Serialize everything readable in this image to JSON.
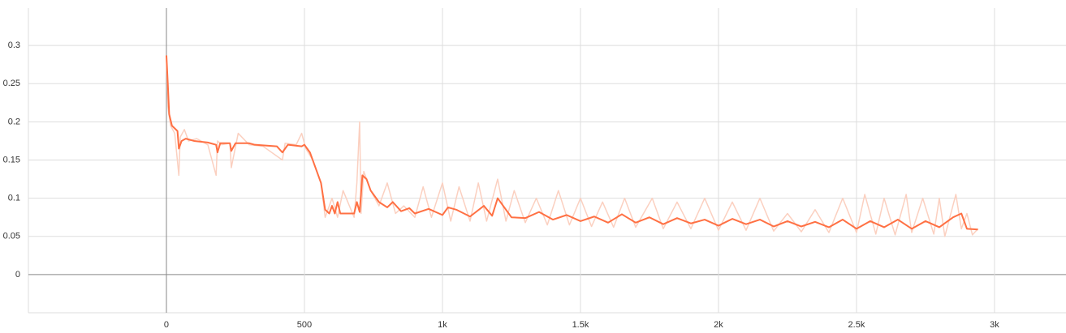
{
  "chart_data": {
    "type": "line",
    "xlim": [
      -500,
      3259
    ],
    "ylim": [
      -0.05,
      0.349
    ],
    "xticks": [
      0,
      500,
      {
        "value": 1000,
        "label": "1k"
      },
      {
        "value": 1500,
        "label": "1.5k"
      },
      {
        "value": 2000,
        "label": "2k"
      },
      {
        "value": 2500,
        "label": "2.5k"
      },
      {
        "value": 3000,
        "label": "3k"
      }
    ],
    "yticks": [
      0,
      0.05,
      0.1,
      0.15,
      0.2,
      0.25,
      0.3
    ],
    "grid": true,
    "series": [
      {
        "color": "#fbd0c0",
        "x": [
          0,
          5,
          15,
          30,
          45,
          50,
          65,
          80,
          110,
          150,
          180,
          185,
          200,
          230,
          235,
          260,
          300,
          350,
          420,
          430,
          470,
          490,
          505,
          530,
          560,
          575,
          600,
          620,
          640,
          680,
          690,
          700,
          705,
          715,
          740,
          770,
          800,
          830,
          860,
          900,
          930,
          960,
          1000,
          1030,
          1060,
          1100,
          1130,
          1160,
          1200,
          1230,
          1260,
          1300,
          1340,
          1380,
          1420,
          1460,
          1500,
          1540,
          1580,
          1620,
          1660,
          1700,
          1760,
          1800,
          1850,
          1900,
          1950,
          2000,
          2050,
          2100,
          2150,
          2200,
          2250,
          2300,
          2350,
          2400,
          2450,
          2500,
          2530,
          2570,
          2600,
          2640,
          2680,
          2700,
          2740,
          2780,
          2800,
          2820,
          2860,
          2880,
          2900,
          2920,
          2940
        ],
        "values": [
          0.287,
          0.22,
          0.195,
          0.185,
          0.13,
          0.18,
          0.19,
          0.175,
          0.178,
          0.17,
          0.13,
          0.175,
          0.17,
          0.172,
          0.14,
          0.185,
          0.17,
          0.168,
          0.15,
          0.172,
          0.17,
          0.185,
          0.165,
          0.15,
          0.12,
          0.075,
          0.1,
          0.075,
          0.11,
          0.075,
          0.12,
          0.2,
          0.08,
          0.135,
          0.11,
          0.09,
          0.12,
          0.08,
          0.09,
          0.075,
          0.115,
          0.075,
          0.12,
          0.07,
          0.115,
          0.07,
          0.12,
          0.07,
          0.125,
          0.07,
          0.11,
          0.068,
          0.1,
          0.065,
          0.11,
          0.065,
          0.1,
          0.063,
          0.095,
          0.062,
          0.1,
          0.062,
          0.1,
          0.06,
          0.095,
          0.06,
          0.1,
          0.058,
          0.095,
          0.058,
          0.1,
          0.057,
          0.08,
          0.056,
          0.085,
          0.055,
          0.1,
          0.055,
          0.105,
          0.053,
          0.1,
          0.052,
          0.105,
          0.055,
          0.1,
          0.053,
          0.1,
          0.05,
          0.105,
          0.06,
          0.08,
          0.052,
          0.06
        ]
      },
      {
        "color": "#ff7043",
        "x": [
          0,
          5,
          10,
          20,
          40,
          45,
          55,
          70,
          100,
          150,
          180,
          185,
          195,
          230,
          235,
          250,
          300,
          320,
          400,
          420,
          440,
          490,
          500,
          520,
          540,
          560,
          575,
          590,
          600,
          610,
          620,
          630,
          680,
          690,
          700,
          710,
          725,
          740,
          770,
          800,
          820,
          850,
          880,
          900,
          950,
          1000,
          1020,
          1050,
          1100,
          1150,
          1180,
          1200,
          1250,
          1300,
          1350,
          1400,
          1450,
          1500,
          1550,
          1600,
          1650,
          1700,
          1750,
          1800,
          1850,
          1900,
          1950,
          2000,
          2050,
          2100,
          2150,
          2200,
          2250,
          2300,
          2350,
          2400,
          2450,
          2500,
          2550,
          2600,
          2650,
          2700,
          2750,
          2800,
          2850,
          2880,
          2900,
          2940
        ],
        "values": [
          0.287,
          0.25,
          0.21,
          0.195,
          0.188,
          0.165,
          0.175,
          0.178,
          0.175,
          0.173,
          0.17,
          0.16,
          0.172,
          0.172,
          0.162,
          0.172,
          0.172,
          0.17,
          0.168,
          0.16,
          0.17,
          0.168,
          0.17,
          0.16,
          0.14,
          0.12,
          0.085,
          0.08,
          0.09,
          0.08,
          0.095,
          0.08,
          0.08,
          0.095,
          0.082,
          0.13,
          0.125,
          0.11,
          0.095,
          0.088,
          0.095,
          0.083,
          0.087,
          0.08,
          0.086,
          0.078,
          0.088,
          0.085,
          0.076,
          0.09,
          0.077,
          0.1,
          0.075,
          0.074,
          0.082,
          0.072,
          0.078,
          0.07,
          0.076,
          0.068,
          0.079,
          0.068,
          0.075,
          0.066,
          0.074,
          0.067,
          0.072,
          0.064,
          0.073,
          0.066,
          0.072,
          0.063,
          0.07,
          0.063,
          0.069,
          0.062,
          0.072,
          0.06,
          0.07,
          0.062,
          0.072,
          0.06,
          0.07,
          0.062,
          0.075,
          0.08,
          0.06,
          0.059
        ]
      }
    ]
  }
}
